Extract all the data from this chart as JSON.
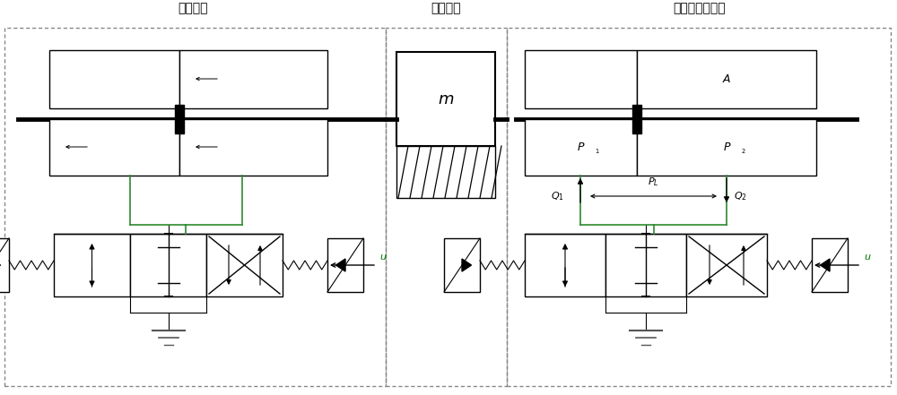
{
  "title_left": "舵机系统",
  "title_mid": "惯性负载",
  "title_right": "电液负载模拟器",
  "bg_color": "#ffffff",
  "green_line": "#2d8a2d",
  "label_m": "m",
  "label_A": "A",
  "label_P1": "P",
  "label_P2": "P",
  "label_PL": "P",
  "label_Q1": "Q",
  "label_Q2": "Q",
  "label_u": "u",
  "figsize": [
    10.0,
    4.41
  ],
  "dpi": 100
}
